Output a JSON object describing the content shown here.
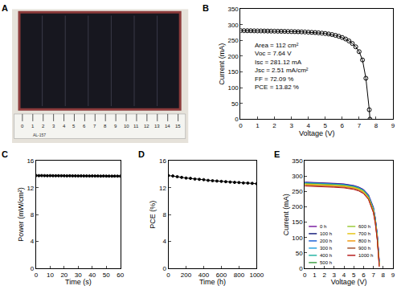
{
  "chart_data": [
    {
      "type": "photo",
      "label": "A",
      "tick_labels": false,
      "ruler_ticks": [
        0,
        1,
        2,
        3,
        4,
        5,
        6,
        7,
        8,
        9,
        10,
        11,
        12,
        13,
        14,
        15
      ],
      "ruler_text": "AL-157"
    },
    {
      "type": "line",
      "label": "B",
      "xlabel": "Voltage (V)",
      "ylabel": "Current (mA)",
      "x": [
        0,
        0.2,
        0.4,
        0.6,
        0.8,
        1.0,
        1.2,
        1.4,
        1.6,
        1.8,
        2.0,
        2.2,
        2.4,
        2.6,
        2.8,
        3.0,
        3.2,
        3.4,
        3.6,
        3.8,
        4.0,
        4.2,
        4.4,
        4.6,
        4.8,
        5.0,
        5.2,
        5.4,
        5.6,
        5.8,
        6.0,
        6.2,
        6.4,
        6.6,
        6.8,
        7.0,
        7.2,
        7.4,
        7.6,
        7.64
      ],
      "series": [
        {
          "color": "#000000",
          "marker": "open circle",
          "line_style": "solid",
          "values": [
            281.1,
            281.0,
            280.8,
            280.7,
            280.5,
            280.3,
            280.2,
            280.0,
            279.8,
            279.6,
            279.4,
            279.2,
            279.0,
            278.8,
            278.5,
            278.2,
            277.9,
            277.6,
            277.2,
            276.8,
            276.3,
            275.7,
            275.0,
            274.2,
            273.2,
            272.0,
            270.5,
            268.6,
            266.2,
            263.2,
            259.4,
            254.6,
            248.4,
            240.4,
            229.8,
            214.5,
            188.0,
            130.0,
            30.0,
            0
          ]
        }
      ],
      "xlim": [
        0,
        9
      ],
      "xticks": [
        0,
        1,
        2,
        3,
        4,
        5,
        6,
        7,
        8,
        9
      ],
      "ylim": [
        0,
        350
      ],
      "yticks": [
        0,
        50,
        100,
        150,
        200,
        250,
        300,
        350
      ],
      "annotations": [
        "Area = 112 cm²",
        "Voc = 7.64 V",
        "Isc = 281.12 mA",
        "Jsc = 2.51 mA/cm²",
        "FF = 72.09 %",
        "PCE = 13.82 %"
      ]
    },
    {
      "type": "line",
      "label": "C",
      "xlabel": "Time (s)",
      "ylabel": "Power (mW/cm²)",
      "x": [
        0,
        2,
        4,
        6,
        8,
        10,
        12,
        14,
        16,
        18,
        20,
        22,
        24,
        26,
        28,
        30,
        32,
        34,
        36,
        38,
        40,
        42,
        44,
        46,
        48,
        50,
        52,
        54,
        56,
        58,
        60
      ],
      "series": [
        {
          "color": "#000000",
          "marker": "circle",
          "line_style": "solid",
          "values": [
            13.82,
            13.8,
            13.81,
            13.8,
            13.79,
            13.8,
            13.79,
            13.78,
            13.79,
            13.78,
            13.78,
            13.77,
            13.78,
            13.77,
            13.77,
            13.76,
            13.77,
            13.76,
            13.76,
            13.75,
            13.76,
            13.75,
            13.75,
            13.74,
            13.75,
            13.74,
            13.74,
            13.73,
            13.74,
            13.73,
            13.73
          ]
        }
      ],
      "xlim": [
        0,
        60
      ],
      "xticks": [
        0,
        10,
        20,
        30,
        40,
        50,
        60
      ],
      "ylim": [
        0,
        16
      ],
      "yticks": [
        0,
        4,
        8,
        12,
        16
      ]
    },
    {
      "type": "line",
      "label": "D",
      "xlabel": "Time (h)",
      "ylabel": "PCE (%)",
      "x": [
        0,
        50,
        100,
        150,
        200,
        250,
        300,
        350,
        400,
        450,
        500,
        550,
        600,
        650,
        700,
        750,
        800,
        850,
        900,
        950,
        1000
      ],
      "series": [
        {
          "color": "#000000",
          "marker": "circle",
          "line_style": "solid",
          "values": [
            13.82,
            13.75,
            13.65,
            13.55,
            13.45,
            13.4,
            13.3,
            13.25,
            13.2,
            13.1,
            13.05,
            13.0,
            12.95,
            12.9,
            12.85,
            12.8,
            12.78,
            12.72,
            12.7,
            12.65,
            12.6
          ]
        }
      ],
      "xlim": [
        0,
        1000
      ],
      "xticks": [
        0,
        200,
        400,
        600,
        800,
        1000
      ],
      "ylim": [
        0,
        16
      ],
      "yticks": [
        0,
        4,
        8,
        12,
        16
      ]
    },
    {
      "type": "line",
      "label": "E",
      "xlabel": "Voltage (V)",
      "ylabel": "Current (mA)",
      "legend": "lower left",
      "x": [
        0,
        1,
        2,
        3,
        4,
        5,
        5.5,
        6,
        6.5,
        7,
        7.2,
        7.4,
        7.6
      ],
      "series": [
        {
          "name": "0 h",
          "color": "#7b1fa2",
          "values": [
            281,
            280,
            279,
            277,
            275,
            270,
            265,
            257,
            240,
            200,
            165,
            110,
            25
          ]
        },
        {
          "name": "100 h",
          "color": "#1a237e",
          "values": [
            280,
            279,
            278,
            276,
            274,
            269,
            264,
            256,
            238,
            198,
            163,
            108,
            22
          ]
        },
        {
          "name": "200 h",
          "color": "#1e63d6",
          "values": [
            279,
            278,
            277,
            275,
            273,
            268,
            263,
            255,
            237,
            196,
            161,
            106,
            20
          ]
        },
        {
          "name": "300 h",
          "color": "#29a3e0",
          "values": [
            278,
            277,
            276,
            274,
            272,
            267,
            262,
            254,
            236,
            195,
            159,
            104,
            18
          ]
        },
        {
          "name": "400 h",
          "color": "#26b5a5",
          "values": [
            277,
            276,
            275,
            273,
            271,
            266,
            261,
            253,
            234,
            193,
            157,
            102,
            16
          ]
        },
        {
          "name": "500 h",
          "color": "#43a047",
          "values": [
            276,
            275,
            274,
            272,
            270,
            265,
            260,
            252,
            233,
            191,
            155,
            100,
            14
          ]
        },
        {
          "name": "600 h",
          "color": "#9ccc3a",
          "values": [
            275,
            274,
            273,
            271,
            269,
            264,
            259,
            251,
            231,
            189,
            153,
            98,
            12
          ]
        },
        {
          "name": "700 h",
          "color": "#e6c619",
          "values": [
            274,
            273,
            272,
            270,
            268,
            263,
            258,
            249,
            230,
            187,
            151,
            96,
            10
          ]
        },
        {
          "name": "800 h",
          "color": "#f39c12",
          "values": [
            272,
            271,
            270,
            268,
            266,
            261,
            256,
            247,
            228,
            185,
            149,
            94,
            8
          ]
        },
        {
          "name": "900 h",
          "color": "#a0522d",
          "values": [
            270,
            269,
            268,
            266,
            264,
            259,
            254,
            245,
            226,
            183,
            147,
            92,
            6
          ]
        },
        {
          "name": "1000 h",
          "color": "#b71c1c",
          "values": [
            268,
            267,
            266,
            264,
            262,
            257,
            252,
            243,
            224,
            181,
            145,
            90,
            4
          ]
        }
      ],
      "xlim": [
        0,
        9
      ],
      "xticks": [
        0,
        1,
        2,
        3,
        4,
        5,
        6,
        7,
        8,
        9
      ],
      "ylim": [
        0,
        350
      ],
      "yticks": [
        0,
        50,
        100,
        150,
        200,
        250,
        300,
        350
      ]
    }
  ]
}
